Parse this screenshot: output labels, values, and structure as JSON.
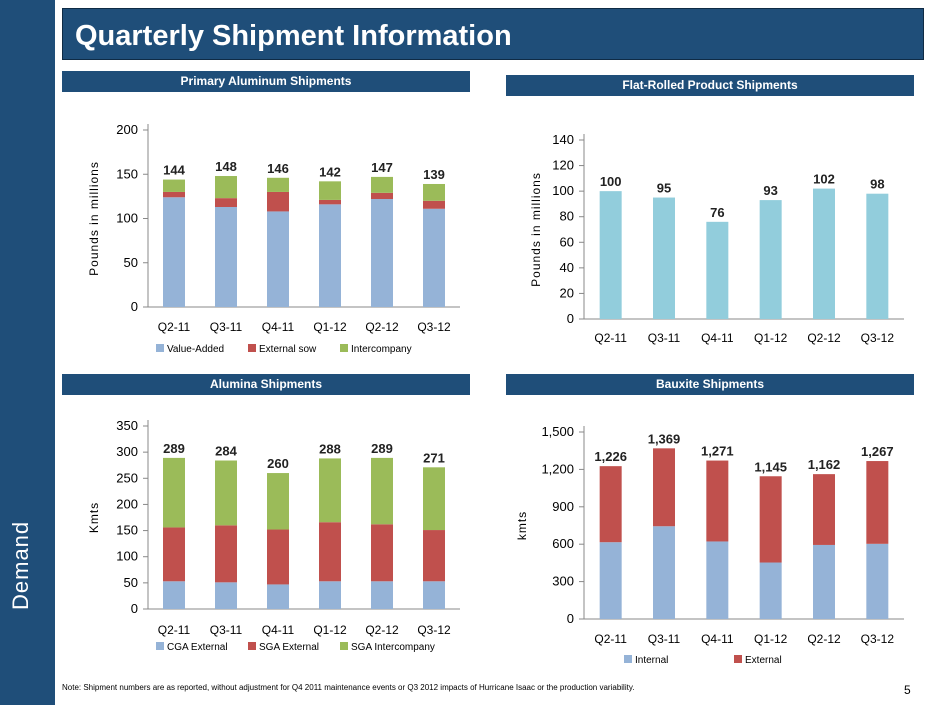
{
  "sidebar": {
    "label": "Demand"
  },
  "page": {
    "title": "Quarterly Shipment Information",
    "page_number": "5",
    "footnote": "Note: Shipment numbers are as reported, without adjustment for Q4 2011 maintenance events or Q3 2012 impacts of Hurricane Isaac or the production variability."
  },
  "sections": {
    "primary": "Primary Aluminum Shipments",
    "flat": "Flat-Rolled Product Shipments",
    "alumina": "Alumina Shipments",
    "bauxite": "Bauxite Shipments"
  },
  "chart_data": [
    {
      "id": "primary",
      "type": "bar",
      "stacked": true,
      "title": "Primary Aluminum Shipments",
      "ylabel": "Pounds in millions",
      "categories": [
        "Q2-11",
        "Q3-11",
        "Q4-11",
        "Q1-12",
        "Q2-12",
        "Q3-12"
      ],
      "ylim": [
        0,
        200
      ],
      "yticks": [
        0,
        50,
        100,
        150,
        200
      ],
      "tick_format": "plain",
      "series": [
        {
          "name": "Value-Added",
          "color": "#95b3d7",
          "values": [
            124,
            113,
            108,
            116,
            122,
            111
          ]
        },
        {
          "name": "External sow",
          "color": "#c0504d",
          "values": [
            6,
            10,
            22,
            5,
            7,
            9
          ]
        },
        {
          "name": "Intercompany",
          "color": "#9bbb59",
          "values": [
            14,
            25,
            16,
            21,
            18,
            19
          ]
        }
      ],
      "totals": [
        "144",
        "148",
        "146",
        "142",
        "147",
        "139"
      ],
      "legend_position": "bottom"
    },
    {
      "id": "flat",
      "type": "bar",
      "stacked": false,
      "title": "Flat-Rolled Product Shipments",
      "ylabel": "Pounds in millions",
      "categories": [
        "Q2-11",
        "Q3-11",
        "Q4-11",
        "Q1-12",
        "Q2-12",
        "Q3-12"
      ],
      "ylim": [
        0,
        140
      ],
      "yticks": [
        0,
        20,
        40,
        60,
        80,
        100,
        120,
        140
      ],
      "tick_format": "plain",
      "series": [
        {
          "name": "Shipments",
          "color": "#92cddc",
          "values": [
            100,
            95,
            76,
            93,
            102,
            98
          ]
        }
      ],
      "totals": [
        "100",
        "95",
        "76",
        "93",
        "102",
        "98"
      ],
      "legend_position": "none"
    },
    {
      "id": "alumina",
      "type": "bar",
      "stacked": true,
      "title": "Alumina Shipments",
      "ylabel": "Kmts",
      "categories": [
        "Q2-11",
        "Q3-11",
        "Q4-11",
        "Q1-12",
        "Q2-12",
        "Q3-12"
      ],
      "ylim": [
        0,
        350
      ],
      "yticks": [
        0,
        50,
        100,
        150,
        200,
        250,
        300,
        350
      ],
      "tick_format": "plain",
      "series": [
        {
          "name": "CGA External",
          "color": "#95b3d7",
          "values": [
            53,
            51,
            47,
            53,
            53,
            53
          ]
        },
        {
          "name": "SGA External",
          "color": "#c0504d",
          "values": [
            103,
            109,
            105,
            113,
            109,
            98
          ]
        },
        {
          "name": "SGA Intercompany",
          "color": "#9bbb59",
          "values": [
            133,
            124,
            108,
            122,
            127,
            120
          ]
        }
      ],
      "totals": [
        "289",
        "284",
        "260",
        "288",
        "289",
        "271"
      ],
      "legend_position": "bottom"
    },
    {
      "id": "bauxite",
      "type": "bar",
      "stacked": true,
      "title": "Bauxite Shipments",
      "ylabel": "kmts",
      "categories": [
        "Q2-11",
        "Q3-11",
        "Q4-11",
        "Q1-12",
        "Q2-12",
        "Q3-12"
      ],
      "ylim": [
        0,
        1500
      ],
      "yticks": [
        0,
        300,
        600,
        900,
        1200,
        1500
      ],
      "tick_format": "comma",
      "series": [
        {
          "name": "Internal",
          "color": "#95b3d7",
          "values": [
            616,
            744,
            622,
            453,
            594,
            603
          ]
        },
        {
          "name": "External",
          "color": "#c0504d",
          "values": [
            610,
            625,
            649,
            692,
            568,
            664
          ]
        }
      ],
      "totals": [
        "1,226",
        "1,369",
        "1,271",
        "1,145",
        "1,162",
        "1,267"
      ],
      "legend_position": "bottom"
    }
  ]
}
